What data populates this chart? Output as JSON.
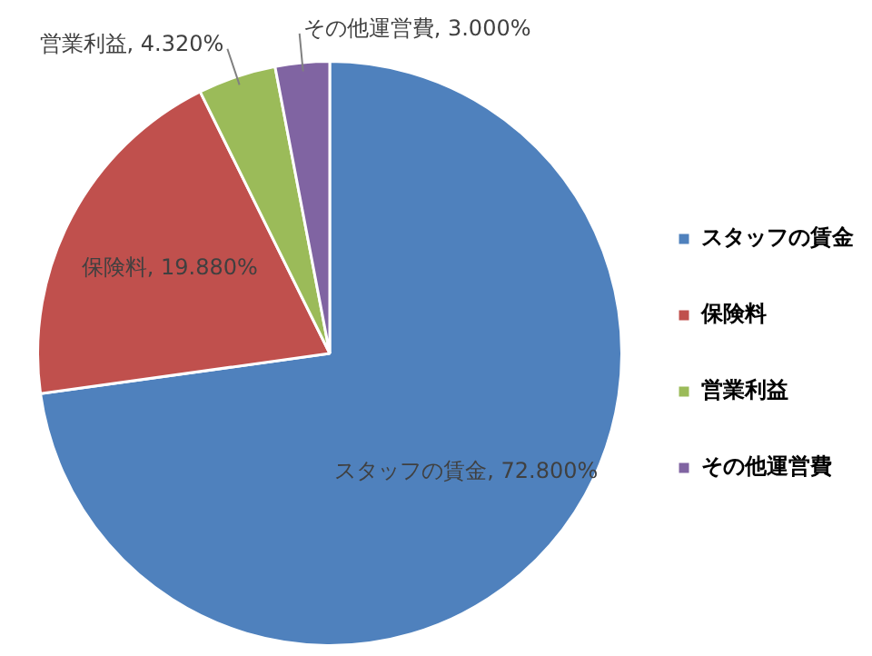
{
  "chart_data": {
    "type": "pie",
    "categories": [
      "スタッフの賃金",
      "保険料",
      "営業利益",
      "その他運営費"
    ],
    "values": [
      72.8,
      19.88,
      4.32,
      3.0
    ],
    "value_labels": [
      "スタッフの賃金, 72.800%",
      "保険料, 19.880%",
      "営業利益, 4.320%",
      "その他運営費, 3.000%"
    ],
    "colors": [
      "#4f81bd",
      "#c0504d",
      "#9bbb59",
      "#8064a2"
    ],
    "legend": "right"
  }
}
